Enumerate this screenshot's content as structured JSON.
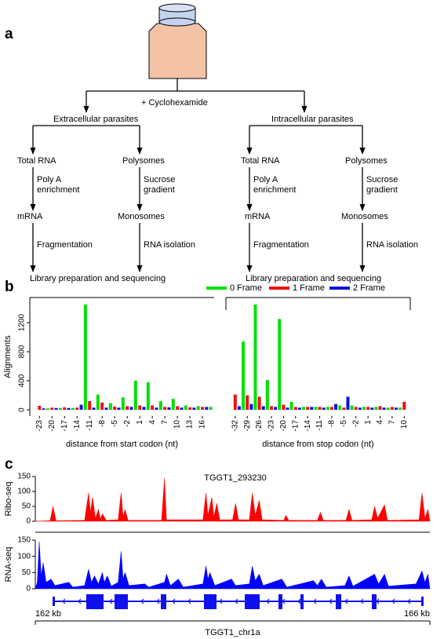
{
  "panel_labels": [
    "a",
    "b",
    "c"
  ],
  "diagram": {
    "treatment": "+ Cyclohexamide",
    "branches": [
      {
        "title": "Extracellular parasites",
        "left": {
          "start": "Total RNA",
          "step1": [
            "Poly A",
            "enrichment"
          ],
          "mid": "mRNA",
          "step2": "Fragmentation"
        },
        "right": {
          "start": "Polysomes",
          "step1": [
            "Sucrose",
            "gradient"
          ],
          "mid": "Monosomes",
          "step2": "RNA isolation"
        },
        "end": "Library preparation and sequencing"
      },
      {
        "title": "Intracellular parasites",
        "left": {
          "start": "Total RNA",
          "step1": [
            "Poly A",
            "enrichment"
          ],
          "mid": "mRNA",
          "step2": "Fragmentation"
        },
        "right": {
          "start": "Polysomes",
          "step1": [
            "Sucrose",
            "gradient"
          ],
          "mid": "Monosomes",
          "step2": "RNA isolation"
        },
        "end": "Library preparation and sequencing"
      }
    ]
  },
  "chart_data": [
    {
      "type": "bar",
      "ylabel": "Alignments",
      "xlabel": "distance from start codon (nt)",
      "xlim": [
        -25.3,
        18.8
      ],
      "xticks": [
        -23,
        -20,
        -17,
        -14,
        -11,
        -8,
        -5,
        -2,
        1,
        4,
        7,
        10,
        13,
        16
      ],
      "ylim": [
        -86,
        1546
      ],
      "yticks": [
        0,
        400,
        800,
        1200
      ],
      "series": [
        {
          "name": "0 Frame",
          "color": "#00e000",
          "x": [
            -21,
            -18,
            -15,
            -12,
            -9,
            -6,
            -3,
            0,
            3,
            6,
            9,
            12,
            15,
            18
          ],
          "values": [
            20,
            25,
            25,
            1450,
            210,
            90,
            170,
            400,
            380,
            120,
            150,
            60,
            50,
            40
          ]
        },
        {
          "name": "1 Frame",
          "color": "#ee1111",
          "x": [
            -23,
            -20,
            -17,
            -14,
            -11,
            -8,
            -5,
            -2,
            1,
            4,
            7,
            10,
            13,
            16
          ],
          "values": [
            55,
            30,
            35,
            30,
            120,
            100,
            45,
            50,
            60,
            60,
            40,
            50,
            35,
            40
          ]
        },
        {
          "name": "2 Frame",
          "color": "#1111dd",
          "x": [
            -22,
            -19,
            -16,
            -13,
            -10,
            -7,
            -4,
            -1,
            2,
            5,
            8,
            11,
            14,
            17
          ],
          "values": [
            20,
            25,
            25,
            70,
            30,
            30,
            30,
            40,
            40,
            30,
            35,
            30,
            30,
            40
          ]
        }
      ]
    },
    {
      "type": "bar",
      "xlabel": "distance from stop codon (nt)",
      "xlim": [
        -34.3,
        11.5
      ],
      "xticks": [
        -32,
        -29,
        -26,
        -23,
        -20,
        -17,
        -14,
        -11,
        -8,
        -5,
        -2,
        1,
        4,
        7,
        10
      ],
      "ylim": [
        -86,
        1546
      ],
      "series": [
        {
          "color": "#00e000",
          "x": [
            -30,
            -27,
            -24,
            -21,
            -18,
            -15,
            -12,
            -9,
            -6,
            -3,
            0,
            3,
            6,
            9
          ],
          "values": [
            940,
            1450,
            410,
            1250,
            110,
            40,
            40,
            40,
            60,
            60,
            40,
            40,
            30,
            30
          ]
        },
        {
          "color": "#ee1111",
          "x": [
            -32,
            -29,
            -26,
            -23,
            -20,
            -17,
            -14,
            -11,
            -8,
            -5,
            -2,
            1,
            4,
            7,
            10
          ],
          "values": [
            210,
            200,
            180,
            50,
            70,
            40,
            40,
            40,
            40,
            30,
            40,
            40,
            50,
            40,
            110
          ]
        },
        {
          "color": "#1111dd",
          "x": [
            -31,
            -28,
            -25,
            -22,
            -19,
            -16,
            -13,
            -10,
            -7,
            -4,
            -1,
            2,
            5,
            8
          ],
          "values": [
            50,
            80,
            50,
            40,
            30,
            30,
            40,
            30,
            80,
            180,
            30,
            30,
            30,
            30
          ]
        }
      ]
    },
    {
      "type": "area",
      "title": "TGGT1_293230",
      "ylabel": "Ribo-seq",
      "color": "#ff0000",
      "xlim": [
        162,
        166
      ],
      "ylim": [
        0,
        150
      ],
      "yticks": [
        0,
        50,
        100,
        150
      ],
      "x": [
        162.0,
        162.15,
        162.18,
        162.21,
        162.5,
        162.54,
        162.56,
        162.58,
        162.61,
        162.64,
        162.66,
        162.68,
        162.72,
        162.84,
        162.87,
        162.89,
        162.91,
        162.94,
        163.28,
        163.31,
        163.33,
        163.7,
        163.73,
        163.75,
        163.79,
        163.81,
        163.84,
        163.87,
        164.0,
        164.03,
        164.06,
        164.17,
        164.2,
        164.23,
        164.27,
        164.3,
        164.52,
        164.54,
        164.57,
        164.86,
        164.89,
        164.92,
        165.15,
        165.18,
        165.21,
        165.41,
        165.44,
        165.47,
        165.54,
        165.57,
        165.89,
        165.92,
        165.95,
        165.98,
        166.0
      ],
      "values": [
        0,
        2,
        50,
        2,
        3,
        95,
        30,
        80,
        10,
        40,
        8,
        25,
        3,
        5,
        95,
        15,
        40,
        3,
        3,
        145,
        5,
        5,
        95,
        20,
        80,
        15,
        60,
        5,
        5,
        60,
        5,
        5,
        95,
        20,
        70,
        5,
        3,
        20,
        3,
        3,
        30,
        3,
        3,
        40,
        3,
        5,
        50,
        10,
        55,
        3,
        5,
        95,
        10,
        40,
        0
      ]
    },
    {
      "type": "area",
      "ylabel": "RNA-seq",
      "color": "#0000ff",
      "xlabel": "TGGT1_chr1a",
      "xlim": [
        162,
        166
      ],
      "xticks": [
        {
          "value": 162,
          "label": "162 kb"
        },
        {
          "value": 166,
          "label": "166 kb"
        }
      ],
      "ylim": [
        0,
        150
      ],
      "yticks": [
        0,
        50,
        100,
        150
      ],
      "x": [
        162.0,
        162.02,
        162.04,
        162.06,
        162.08,
        162.11,
        162.16,
        162.2,
        162.34,
        162.38,
        162.5,
        162.54,
        162.57,
        162.6,
        162.64,
        162.68,
        162.7,
        162.73,
        162.77,
        162.84,
        162.87,
        162.89,
        162.91,
        162.95,
        163.11,
        163.15,
        163.31,
        163.33,
        163.37,
        163.45,
        163.5,
        163.7,
        163.73,
        163.75,
        163.77,
        163.82,
        163.99,
        164.03,
        164.17,
        164.2,
        164.23,
        164.27,
        164.31,
        164.5,
        164.55,
        164.82,
        164.86,
        164.9,
        164.95,
        165.14,
        165.18,
        165.22,
        165.44,
        165.48,
        165.54,
        165.58,
        165.86,
        165.92,
        165.95,
        165.98,
        166.0
      ],
      "values": [
        0,
        20,
        145,
        40,
        80,
        20,
        30,
        10,
        20,
        5,
        10,
        60,
        20,
        40,
        15,
        50,
        20,
        40,
        8,
        20,
        115,
        30,
        50,
        10,
        15,
        5,
        20,
        45,
        10,
        30,
        5,
        15,
        70,
        30,
        50,
        10,
        30,
        10,
        15,
        70,
        25,
        45,
        10,
        30,
        5,
        25,
        10,
        30,
        5,
        10,
        40,
        8,
        45,
        15,
        45,
        8,
        15,
        55,
        20,
        45,
        0
      ]
    }
  ]
}
